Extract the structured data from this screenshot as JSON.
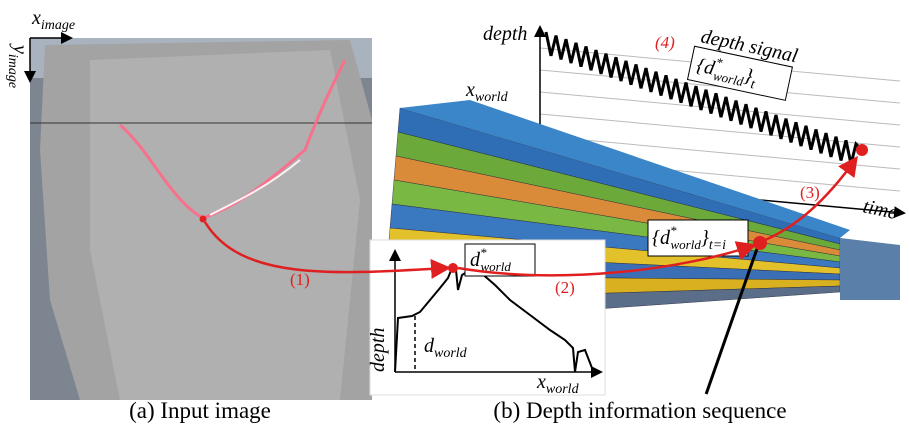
{
  "panel_a": {
    "caption": "(a) Input image",
    "x_axis": {
      "base": "x",
      "sub": "image"
    },
    "y_axis": {
      "base": "y",
      "sub": "image"
    },
    "step_label": "(1)"
  },
  "inset": {
    "y_label": "depth",
    "x_label": {
      "base": "x",
      "sub": "world"
    },
    "d_label": {
      "base": "d",
      "sub": "world"
    },
    "d_star_label": {
      "base": "d",
      "sup": "*",
      "sub": "world"
    },
    "step_label": "(2)"
  },
  "panel_b": {
    "caption": "(b) Depth information sequence",
    "depth_axis": "depth",
    "x_axis": {
      "base": "x",
      "sub": "world"
    },
    "time_axis": "time",
    "step3": "(3)",
    "step4": "(4)",
    "signal_title": "depth signal",
    "signal_set": {
      "open": "{",
      "base": "d",
      "sup": "*",
      "sub": "world",
      "close": "}",
      "outer_sub": "t"
    },
    "point_set": {
      "open": "{",
      "base": "d",
      "sup": "*",
      "sub": "world",
      "close": "}",
      "outer_sub": "t=i"
    }
  }
}
